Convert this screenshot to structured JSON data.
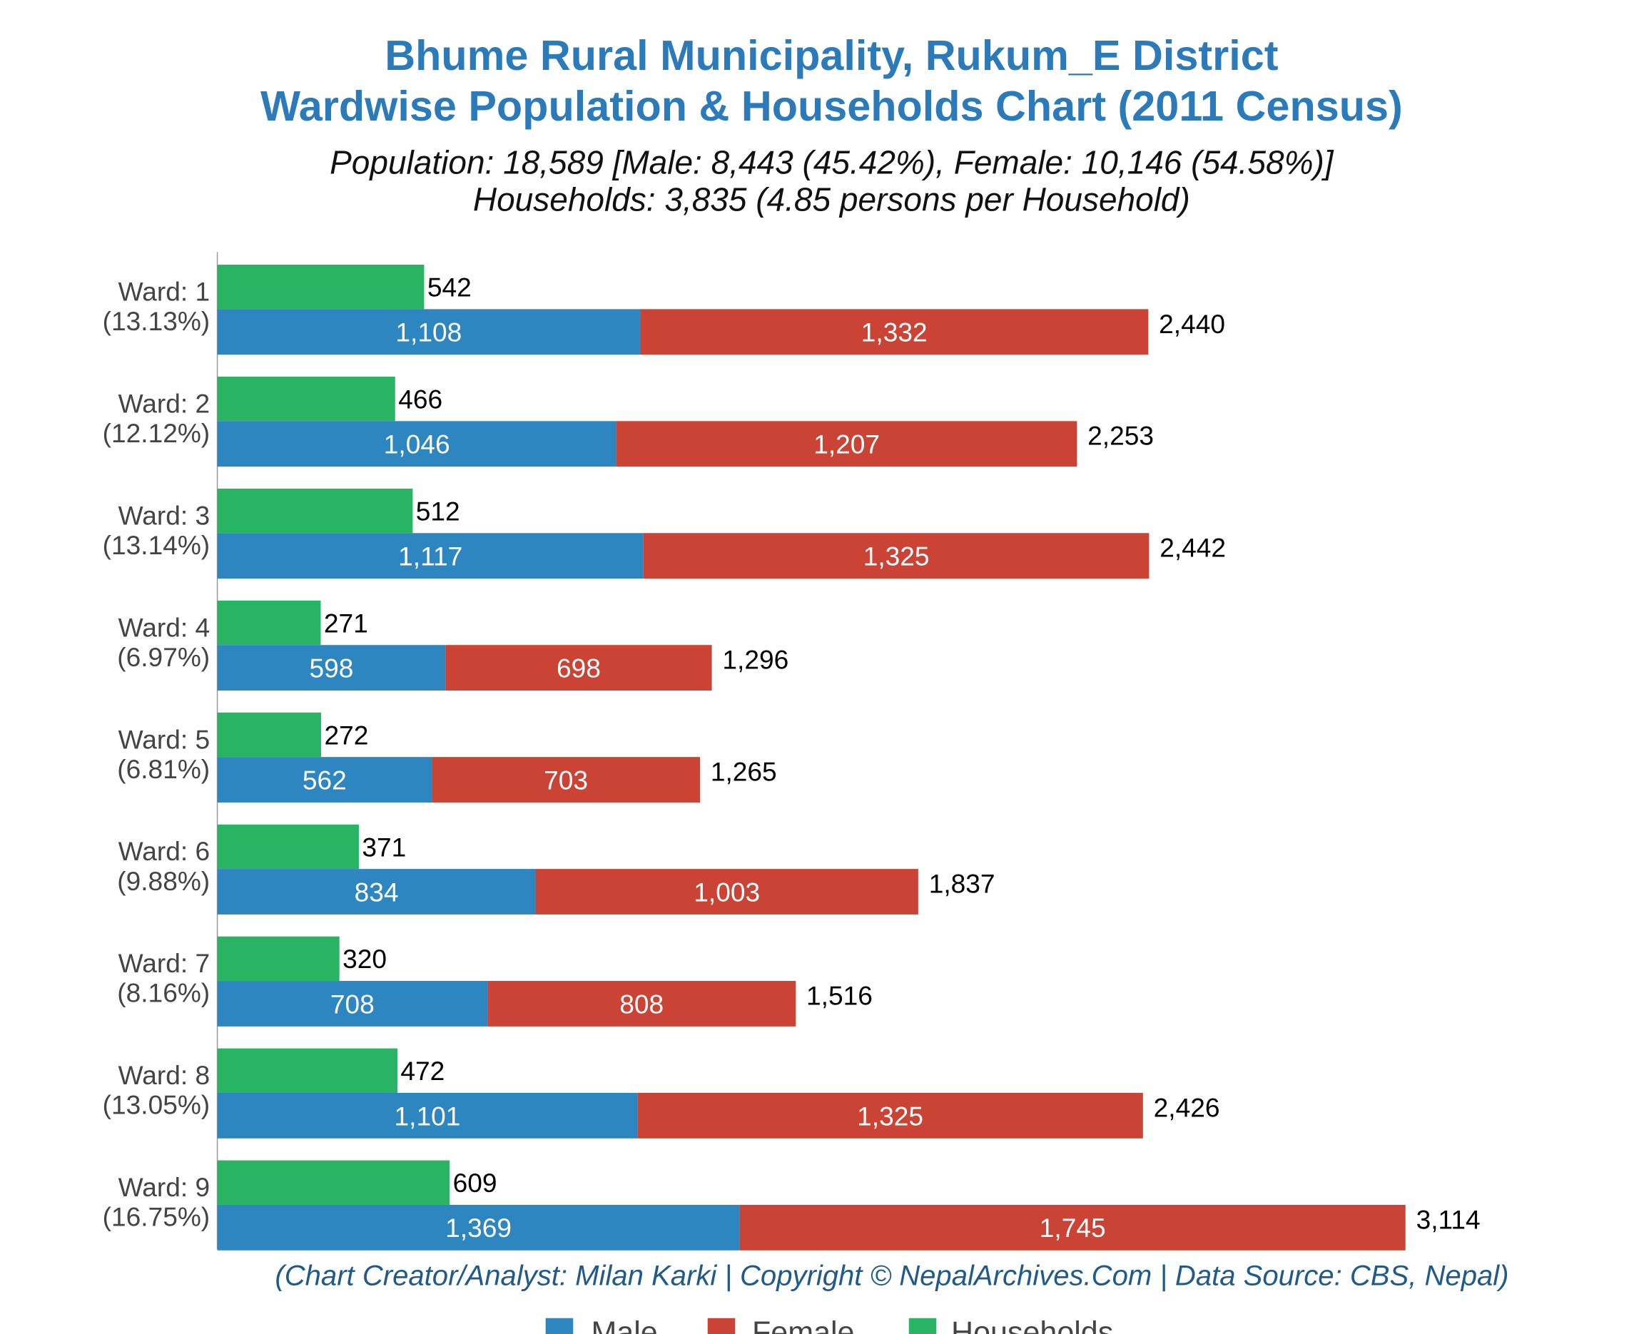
{
  "chart_data": {
    "type": "bar",
    "orientation": "horizontal",
    "title": [
      "Bhume Rural Municipality, Rukum_E District",
      "Wardwise Population & Households Chart (2011 Census)"
    ],
    "subtitle": [
      "Population: 18,589 [Male: 8,443 (45.42%), Female: 10,146 (54.58%)]",
      "Households: 3,835 (4.85 persons per Household)"
    ],
    "source": "(Chart Creator/Analyst: Milan Karki | Copyright © NepalArchives.Com | Data Source: CBS, Nepal)",
    "categories": [
      "Ward: 1",
      "Ward: 2",
      "Ward: 3",
      "Ward: 4",
      "Ward: 5",
      "Ward: 6",
      "Ward: 7",
      "Ward: 8",
      "Ward: 9"
    ],
    "category_shares": [
      "(13.13%)",
      "(12.12%)",
      "(13.14%)",
      "(6.97%)",
      "(6.81%)",
      "(9.88%)",
      "(8.16%)",
      "(13.05%)",
      "(16.75%)"
    ],
    "series": [
      {
        "name": "Male",
        "color": "#2e86c1",
        "values": [
          1108,
          1046,
          1117,
          598,
          562,
          834,
          708,
          1101,
          1369
        ],
        "value_labels": [
          "1,108",
          "1,046",
          "1,117",
          "598",
          "562",
          "834",
          "708",
          "1,101",
          "1,369"
        ]
      },
      {
        "name": "Female",
        "color": "#cb4335",
        "values": [
          1332,
          1207,
          1325,
          698,
          703,
          1003,
          808,
          1325,
          1745
        ],
        "value_labels": [
          "1,332",
          "1,207",
          "1,325",
          "698",
          "703",
          "1,003",
          "808",
          "1,325",
          "1,745"
        ]
      },
      {
        "name": "Households",
        "color": "#28b463",
        "values": [
          542,
          466,
          512,
          271,
          272,
          371,
          320,
          472,
          609
        ]
      }
    ],
    "totals": [
      2440,
      2253,
      2442,
      1296,
      1265,
      1837,
      1516,
      2426,
      3114
    ],
    "total_labels": [
      "2,440",
      "2,253",
      "2,442",
      "1,296",
      "1,265",
      "1,837",
      "1,516",
      "2,426",
      "3,114"
    ],
    "xlim": [
      0,
      3300
    ],
    "legend": "bottom"
  }
}
